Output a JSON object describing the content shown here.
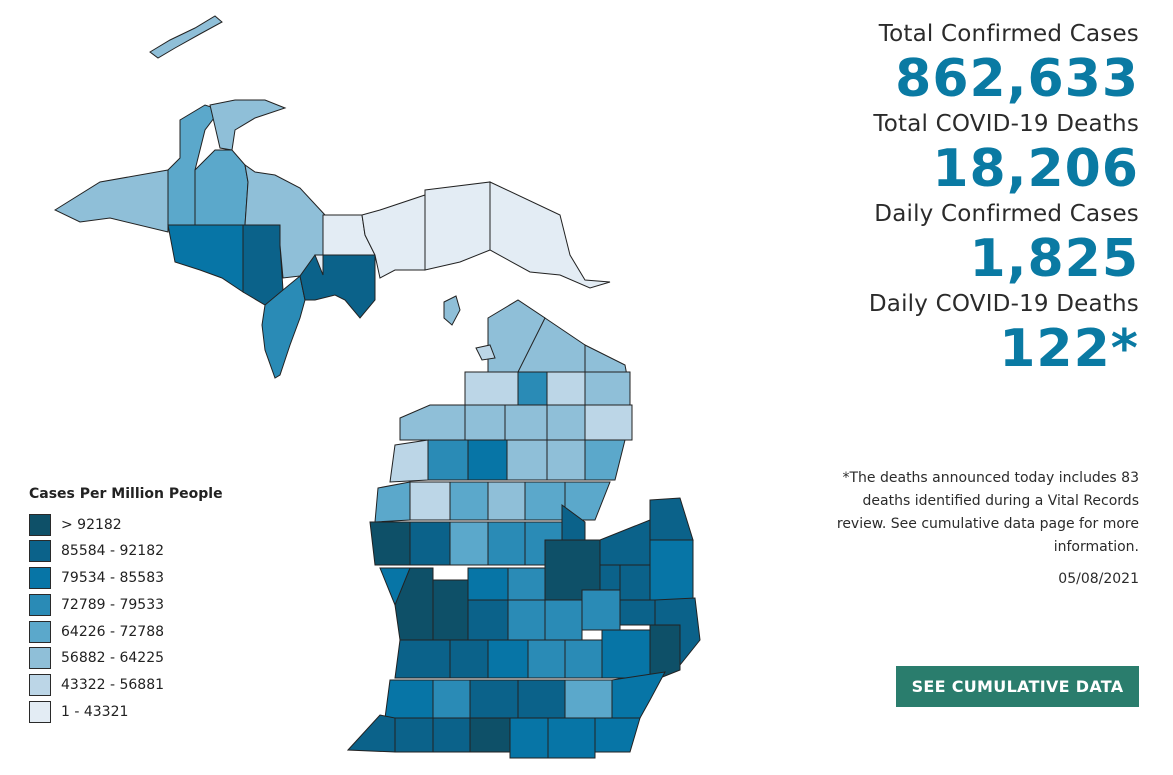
{
  "legend": {
    "title": "Cases Per Million People",
    "items": [
      {
        "label": "> 92182",
        "color": "#0e5068"
      },
      {
        "label": "85584 - 92182",
        "color": "#0b628a"
      },
      {
        "label": "79534 - 85583",
        "color": "#0775a6"
      },
      {
        "label": "72789 - 79533",
        "color": "#2a8bb6"
      },
      {
        "label": "64226 - 72788",
        "color": "#5ba8cb"
      },
      {
        "label": "56882 - 64225",
        "color": "#8fbfd8"
      },
      {
        "label": "43322 - 56881",
        "color": "#bcd6e7"
      },
      {
        "label": "1 - 43321",
        "color": "#e3ecf4"
      }
    ]
  },
  "stats": {
    "total_cases_label": "Total Confirmed Cases",
    "total_cases_value": "862,633",
    "total_deaths_label": "Total COVID-19 Deaths",
    "total_deaths_value": "18,206",
    "daily_cases_label": "Daily Confirmed Cases",
    "daily_cases_value": "1,825",
    "daily_deaths_label": "Daily COVID-19 Deaths",
    "daily_deaths_value": "122*"
  },
  "note": "*The deaths announced today includes 83 deaths identified during a Vital Records review. See cumulative data page for more information.",
  "date": "05/08/2021",
  "cta_label": "SEE CUMULATIVE DATA",
  "colors": {
    "accent": "#0a7aa3",
    "button": "#2a7d6d"
  }
}
